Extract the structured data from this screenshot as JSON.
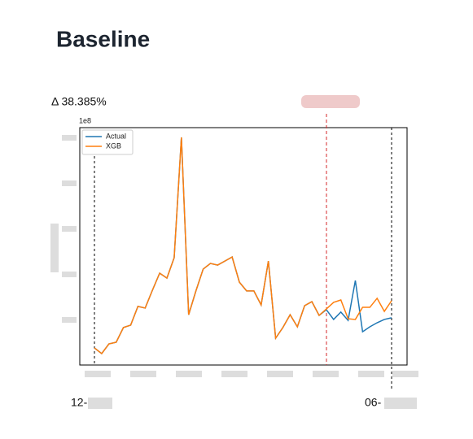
{
  "header": {
    "title": "Baseline",
    "delta": "Δ 38.385%"
  },
  "chart_data": {
    "type": "line",
    "scale_note": "1e8",
    "categories": [
      null,
      null,
      null,
      null,
      null,
      null,
      null,
      null,
      null,
      null,
      null,
      null,
      null,
      null,
      null,
      null,
      null,
      null,
      null,
      null,
      null,
      null,
      null,
      null,
      null,
      null,
      null,
      null,
      null,
      null,
      null,
      null,
      null,
      null,
      null,
      null,
      null,
      null,
      null,
      null,
      null,
      null
    ],
    "ylim": [
      0,
      100
    ],
    "legend": "upper left",
    "series": [
      {
        "name": "Actual",
        "color": "#1f77b4",
        "values": [
          7.2,
          4.8,
          8.9,
          9.6,
          15.8,
          16.8,
          24.7,
          24.0,
          31.5,
          38.7,
          36.6,
          45.2,
          95.9,
          21.2,
          31.2,
          40.4,
          42.8,
          42.1,
          43.8,
          45.5,
          34.9,
          31.2,
          31.2,
          25.3,
          43.8,
          11.3,
          15.8,
          21.2,
          16.1,
          25.0,
          26.7,
          20.9,
          23.3,
          19.2,
          22.3,
          18.8,
          35.6,
          14.0,
          16.1,
          17.8,
          19.2,
          19.9
        ]
      },
      {
        "name": "XGB",
        "color": "#ff7f0e",
        "values": [
          7.2,
          4.8,
          8.9,
          9.6,
          15.8,
          16.8,
          24.7,
          24.0,
          31.5,
          38.7,
          36.6,
          45.2,
          95.9,
          21.2,
          31.2,
          40.4,
          42.8,
          42.1,
          43.8,
          45.5,
          34.9,
          31.2,
          31.2,
          25.3,
          43.8,
          11.3,
          15.8,
          21.2,
          16.1,
          25.0,
          26.7,
          20.9,
          23.6,
          26.4,
          27.4,
          19.5,
          19.2,
          24.3,
          24.3,
          28.1,
          22.6,
          27.1
        ]
      }
    ],
    "start_label": "12-",
    "end_label": "06-"
  }
}
